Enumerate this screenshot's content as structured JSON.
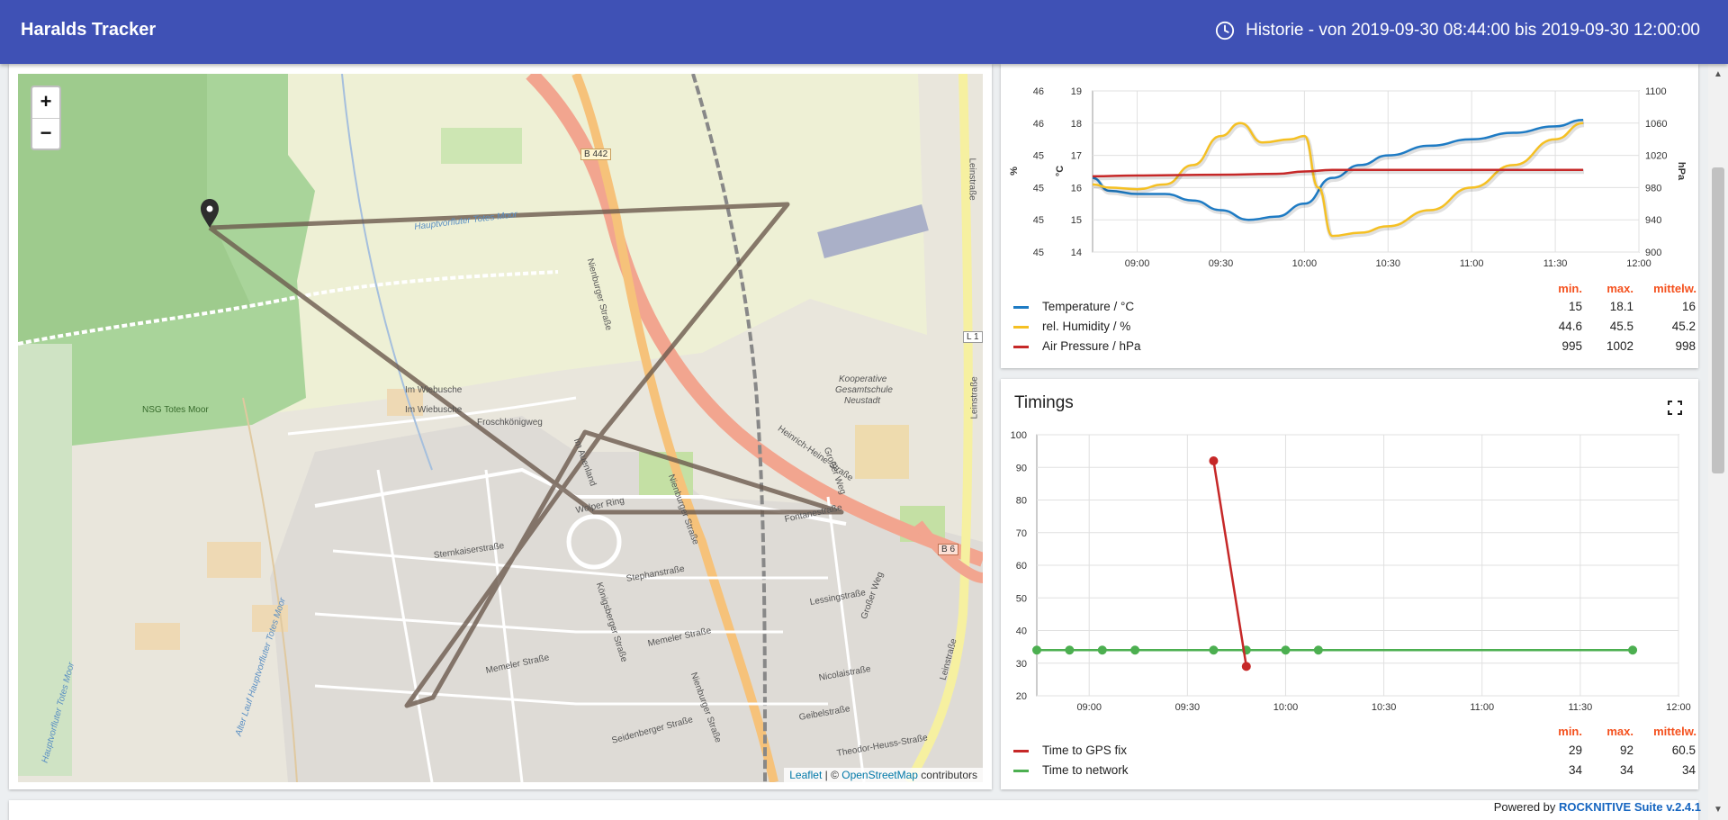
{
  "app": {
    "title": "Haralds Tracker",
    "history": "Historie - von 2019-09-30 08:44:00 bis 2019-09-30 12:00:00"
  },
  "map": {
    "zoom_in": "+",
    "zoom_out": "−",
    "attribution": {
      "leaflet": "Leaflet",
      "sep": " | © ",
      "osm": "OpenStreetMap",
      "suffix": " contributors"
    },
    "labels": {
      "b442": "B 442",
      "hauptvorfluter": "Hauptvorfluter Totes Moor",
      "nienburger1": "Nienburger Straße",
      "nienburger2": "Nienburger Straße",
      "nienburger3": "Nienburger Straße",
      "nsg": "NSG Totes Moor",
      "wiebusche1": "Im Wiebusche",
      "wiebusche2": "Im Wiebusche",
      "froschkoenig": "Froschkönigweg",
      "auenland": "Im Auenland",
      "kooperative": "Kooperative",
      "gesamtschule": "Gesamtschule",
      "neustadt": "Neustadt",
      "heine": "Heinrich-Heine-Straße",
      "fontane": "Fontanestraße",
      "leinstrasse1": "Leinstraße",
      "leinstrasse2": "Leinstraße",
      "leinstrasse3": "Leinstraße",
      "b6": "B 6",
      "l1": "L 1",
      "sternkaiser": "Sternkaiserstraße",
      "stephan": "Stephanstraße",
      "memeler1": "Memeler Straße",
      "memeler2": "Memeler Straße",
      "lessing": "Lessingstraße",
      "nicolai": "Nicolaistraße",
      "seidenberger": "Seidenberger Straße",
      "heuss": "Theodor-Heuss-Straße",
      "geibel": "Geibelstraße",
      "wolper": "Wolper Ring",
      "koenigsberger": "Königsberger Straße",
      "grosser1": "Großer Weg",
      "grosser2": "Großer Weg",
      "alter": "Alter Lauf Hauptvorfluter Totes Moor",
      "moor": "Hauptvorfluter Totes Moor"
    }
  },
  "sensor_card": {
    "headers": {
      "min": "min.",
      "max": "max.",
      "avg": "mittelw."
    },
    "axes": {
      "left_outer_label": "%",
      "left_inner_label": "°C",
      "right_label": "hPa"
    },
    "rows": [
      {
        "name": "Temperature / °C",
        "min": "15",
        "max": "18.1",
        "avg": "16",
        "color": "#1e7bc4"
      },
      {
        "name": "rel. Humidity / %",
        "min": "44.6",
        "max": "45.5",
        "avg": "45.2",
        "color": "#f5c023"
      },
      {
        "name": "Air Pressure / hPa",
        "min": "995",
        "max": "1002",
        "avg": "998",
        "color": "#c62828"
      }
    ]
  },
  "timings_card": {
    "title": "Timings",
    "headers": {
      "min": "min.",
      "max": "max.",
      "avg": "mittelw."
    },
    "rows": [
      {
        "name": "Time to GPS fix",
        "min": "29",
        "max": "92",
        "avg": "60.5",
        "color": "#c62828"
      },
      {
        "name": "Time to network",
        "min": "34",
        "max": "34",
        "avg": "34",
        "color": "#4caf50"
      }
    ]
  },
  "chart_data": [
    {
      "type": "line",
      "x_ticks": [
        "09:00",
        "09:30",
        "10:00",
        "10:30",
        "11:00",
        "11:30",
        "12:00"
      ],
      "xlim": [
        "08:44",
        "12:00"
      ],
      "y_axes": {
        "humidity_pct": {
          "ticks": [
            "45",
            "45",
            "45",
            "45",
            "46",
            "46"
          ]
        },
        "temperature_c": {
          "ticks": [
            14,
            15,
            16,
            17,
            18,
            19
          ],
          "ylim": [
            14,
            19
          ]
        },
        "pressure_hpa": {
          "ticks": [
            900,
            940,
            980,
            1020,
            1060,
            1100
          ],
          "ylim": [
            900,
            1100
          ]
        }
      },
      "grid": true,
      "series": [
        {
          "name": "Temperature / °C",
          "axis": "temperature_c",
          "color": "#1e7bc4",
          "x": [
            "08:44",
            "08:50",
            "09:00",
            "09:10",
            "09:20",
            "09:30",
            "09:40",
            "09:50",
            "10:00",
            "10:10",
            "10:20",
            "10:30",
            "10:45",
            "11:00",
            "11:15",
            "11:30",
            "11:40"
          ],
          "y": [
            16.3,
            15.9,
            15.8,
            15.8,
            15.6,
            15.3,
            15.0,
            15.1,
            15.5,
            16.3,
            16.7,
            17.0,
            17.3,
            17.5,
            17.7,
            17.9,
            18.1
          ]
        },
        {
          "name": "rel. Humidity / %",
          "axis": "temperature_c",
          "color": "#f5c023",
          "x": [
            "08:44",
            "08:50",
            "09:00",
            "09:10",
            "09:20",
            "09:30",
            "09:37",
            "09:45",
            "09:55",
            "10:00",
            "10:05",
            "10:10",
            "10:20",
            "10:30",
            "10:45",
            "11:00",
            "11:15",
            "11:30",
            "11:40"
          ],
          "y": [
            16.1,
            16.0,
            15.95,
            16.1,
            16.7,
            17.6,
            18.0,
            17.4,
            17.5,
            17.6,
            16.0,
            14.5,
            14.6,
            14.8,
            15.3,
            16.0,
            16.7,
            17.5,
            18.0
          ]
        },
        {
          "name": "Air Pressure / hPa",
          "axis": "pressure_hpa",
          "color": "#c62828",
          "x": [
            "08:44",
            "09:00",
            "09:30",
            "09:50",
            "10:00",
            "10:10",
            "10:30",
            "11:00",
            "11:30",
            "11:40"
          ],
          "y": [
            994,
            995,
            996,
            997,
            1000,
            1002,
            1002,
            1002,
            1002,
            1002
          ]
        }
      ]
    },
    {
      "type": "line",
      "x_ticks": [
        "09:00",
        "09:30",
        "10:00",
        "10:30",
        "11:00",
        "11:30",
        "12:00"
      ],
      "xlim": [
        "08:44",
        "12:00"
      ],
      "y_ticks": [
        20,
        30,
        40,
        50,
        60,
        70,
        80,
        90,
        100
      ],
      "ylim": [
        20,
        100
      ],
      "grid": true,
      "series": [
        {
          "name": "Time to GPS fix",
          "color": "#c62828",
          "x": [
            "09:38",
            "09:48"
          ],
          "y": [
            92,
            29
          ]
        },
        {
          "name": "Time to network",
          "color": "#4caf50",
          "x": [
            "08:44",
            "08:54",
            "09:04",
            "09:14",
            "09:38",
            "09:48",
            "10:00",
            "10:10",
            "11:46"
          ],
          "y": [
            34,
            34,
            34,
            34,
            34,
            34,
            34,
            34,
            34
          ]
        }
      ]
    }
  ]
}
